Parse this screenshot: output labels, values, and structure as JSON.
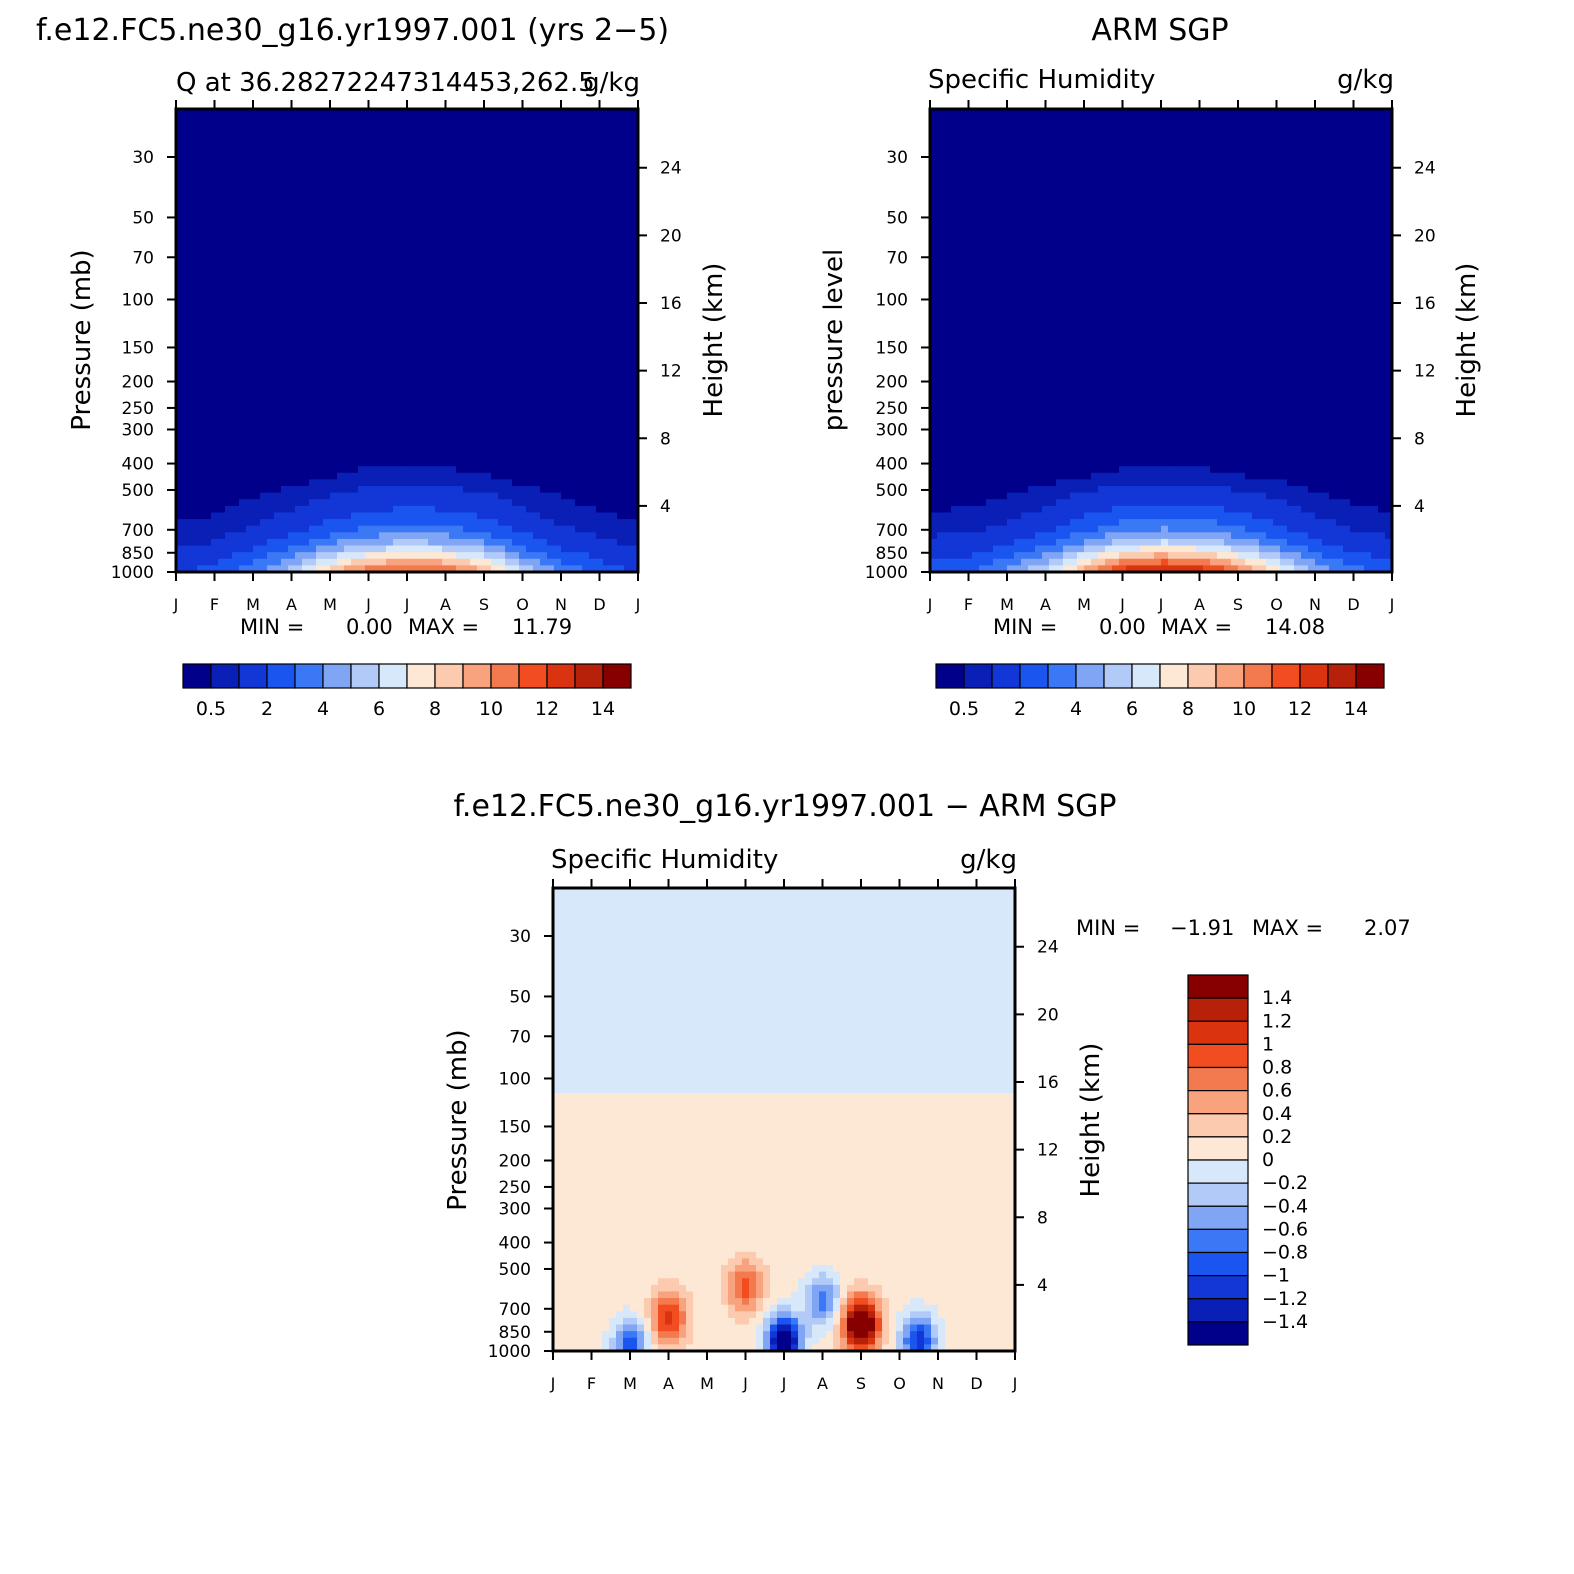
{
  "chart_data": [
    {
      "type": "heatmap",
      "title": "f.e12.FC5.ne30_g16.yr1997.001 (yrs 2−5)",
      "subtitle_left": "Q at 36.28272247314453,262.5",
      "subtitle_right": "g/kg",
      "ylabel": "Pressure (mb)",
      "ylabel_right": "Height (km)",
      "min_label": "MIN =",
      "min_value": "0.00",
      "max_label": "MAX =",
      "max_value": "11.79",
      "x": [
        "J",
        "F",
        "M",
        "A",
        "M",
        "J",
        "J",
        "A",
        "S",
        "O",
        "N",
        "D",
        "J"
      ],
      "y_ticks": [
        "30",
        "50",
        "70",
        "100",
        "150",
        "200",
        "250",
        "300",
        "400",
        "500",
        "700",
        "850",
        "1000"
      ],
      "y_right_ticks": [
        "24",
        "20",
        "16",
        "12",
        "8",
        "4"
      ],
      "ylim": [
        1000,
        20
      ],
      "log_scale_y": true,
      "levels": [
        0.5,
        1,
        2,
        3,
        4,
        5,
        6,
        7,
        8,
        9,
        10,
        11,
        12,
        13,
        14
      ],
      "colorbar_labels": [
        "0.5",
        "2",
        "4",
        "6",
        "8",
        "10",
        "12",
        "14"
      ],
      "colors": [
        "#00008b",
        "#0a1fb6",
        "#1237d6",
        "#1b55f0",
        "#3a78f5",
        "#7fa5f4",
        "#b2caf8",
        "#d8e8fb",
        "#fde8d6",
        "#fccaae",
        "#f8a27e",
        "#f3794e",
        "#f24d20",
        "#da330f",
        "#b82109",
        "#870000"
      ],
      "profile_pressure": [
        1000,
        950,
        900,
        850,
        800,
        700,
        600,
        500,
        450,
        400,
        350,
        300
      ],
      "values_monthly_profiles": [
        [
          2.0,
          1.7,
          1.4,
          1.2,
          0.9,
          0.6,
          0.4,
          0.2,
          0.1,
          0.06,
          0.03,
          0.01
        ],
        [
          2.3,
          2.0,
          1.7,
          1.4,
          1.1,
          0.7,
          0.45,
          0.25,
          0.12,
          0.07,
          0.03,
          0.01
        ],
        [
          3.8,
          3.3,
          2.8,
          2.3,
          1.8,
          1.1,
          0.7,
          0.4,
          0.2,
          0.1,
          0.05,
          0.02
        ],
        [
          5.6,
          4.9,
          4.1,
          3.4,
          2.7,
          1.7,
          1.0,
          0.55,
          0.3,
          0.15,
          0.07,
          0.03
        ],
        [
          8.5,
          7.5,
          6.3,
          5.2,
          4.1,
          2.5,
          1.5,
          0.8,
          0.5,
          0.25,
          0.1,
          0.04
        ],
        [
          11.0,
          9.7,
          8.1,
          6.6,
          5.2,
          3.2,
          2.0,
          1.1,
          0.7,
          0.45,
          0.2,
          0.07
        ],
        [
          11.8,
          10.4,
          8.7,
          7.1,
          5.6,
          3.5,
          2.2,
          1.2,
          0.75,
          0.45,
          0.2,
          0.07
        ],
        [
          11.2,
          9.9,
          8.3,
          6.8,
          5.3,
          3.3,
          2.1,
          1.1,
          0.7,
          0.4,
          0.18,
          0.06
        ],
        [
          9.2,
          8.1,
          6.8,
          5.6,
          4.4,
          2.7,
          1.7,
          0.9,
          0.55,
          0.3,
          0.13,
          0.05
        ],
        [
          6.0,
          5.3,
          4.4,
          3.6,
          2.8,
          1.8,
          1.1,
          0.6,
          0.35,
          0.18,
          0.08,
          0.03
        ],
        [
          3.8,
          3.3,
          2.8,
          2.3,
          1.8,
          1.1,
          0.7,
          0.4,
          0.2,
          0.1,
          0.05,
          0.02
        ],
        [
          2.6,
          2.3,
          1.9,
          1.6,
          1.2,
          0.8,
          0.5,
          0.28,
          0.14,
          0.08,
          0.04,
          0.01
        ],
        [
          2.0,
          1.7,
          1.4,
          1.2,
          0.9,
          0.6,
          0.4,
          0.2,
          0.1,
          0.06,
          0.03,
          0.01
        ]
      ]
    },
    {
      "type": "heatmap",
      "title": "ARM SGP",
      "subtitle_left": "Specific Humidity",
      "subtitle_right": "g/kg",
      "ylabel": "pressure level",
      "ylabel_right": "Height (km)",
      "min_label": "MIN =",
      "min_value": "0.00",
      "max_label": "MAX =",
      "max_value": "14.08",
      "x": [
        "J",
        "F",
        "M",
        "A",
        "M",
        "J",
        "J",
        "A",
        "S",
        "O",
        "N",
        "D",
        "J"
      ],
      "y_ticks": [
        "30",
        "50",
        "70",
        "100",
        "150",
        "200",
        "250",
        "300",
        "400",
        "500",
        "700",
        "850",
        "1000"
      ],
      "y_right_ticks": [
        "24",
        "20",
        "16",
        "12",
        "8",
        "4"
      ],
      "ylim": [
        1000,
        20
      ],
      "log_scale_y": true,
      "levels": [
        0.5,
        1,
        2,
        3,
        4,
        5,
        6,
        7,
        8,
        9,
        10,
        11,
        12,
        13,
        14
      ],
      "colorbar_labels": [
        "0.5",
        "2",
        "4",
        "6",
        "8",
        "10",
        "12",
        "14"
      ],
      "colors": [
        "#00008b",
        "#0a1fb6",
        "#1237d6",
        "#1b55f0",
        "#3a78f5",
        "#7fa5f4",
        "#b2caf8",
        "#d8e8fb",
        "#fde8d6",
        "#fccaae",
        "#f8a27e",
        "#f3794e",
        "#f24d20",
        "#da330f",
        "#b82109",
        "#870000"
      ],
      "profile_pressure": [
        1000,
        950,
        900,
        850,
        800,
        700,
        600,
        500,
        450,
        400,
        350,
        300
      ],
      "values_monthly_profiles": [
        [
          2.6,
          2.3,
          1.9,
          1.6,
          1.3,
          0.8,
          0.5,
          0.25,
          0.12,
          0.06,
          0.03,
          0.01
        ],
        [
          3.0,
          2.6,
          2.2,
          1.8,
          1.4,
          0.9,
          0.55,
          0.28,
          0.14,
          0.07,
          0.03,
          0.01
        ],
        [
          4.2,
          3.7,
          3.1,
          2.5,
          2.0,
          1.2,
          0.75,
          0.4,
          0.2,
          0.1,
          0.05,
          0.02
        ],
        [
          6.2,
          5.4,
          4.5,
          3.7,
          2.9,
          1.8,
          1.1,
          0.6,
          0.3,
          0.15,
          0.07,
          0.03
        ],
        [
          9.5,
          8.3,
          7.0,
          5.7,
          4.5,
          2.8,
          1.7,
          0.9,
          0.5,
          0.25,
          0.1,
          0.04
        ],
        [
          12.6,
          11.1,
          9.3,
          7.6,
          6.0,
          3.7,
          2.3,
          1.2,
          0.7,
          0.4,
          0.18,
          0.06
        ],
        [
          14.0,
          12.3,
          10.3,
          8.4,
          6.6,
          4.1,
          2.5,
          1.3,
          0.75,
          0.45,
          0.2,
          0.07
        ],
        [
          13.2,
          11.6,
          9.7,
          7.9,
          6.2,
          3.9,
          2.4,
          1.25,
          0.72,
          0.42,
          0.19,
          0.06
        ],
        [
          10.8,
          9.5,
          7.9,
          6.5,
          5.1,
          3.2,
          1.9,
          1.0,
          0.55,
          0.3,
          0.13,
          0.05
        ],
        [
          7.8,
          6.8,
          5.7,
          4.7,
          3.7,
          2.3,
          1.4,
          0.75,
          0.45,
          0.25,
          0.1,
          0.04
        ],
        [
          5.0,
          4.4,
          3.7,
          3.0,
          2.4,
          1.5,
          0.9,
          0.45,
          0.22,
          0.11,
          0.05,
          0.02
        ],
        [
          3.4,
          3.0,
          2.5,
          2.0,
          1.6,
          1.0,
          0.6,
          0.3,
          0.15,
          0.08,
          0.04,
          0.01
        ],
        [
          2.6,
          2.3,
          1.9,
          1.6,
          1.3,
          0.8,
          0.5,
          0.25,
          0.12,
          0.06,
          0.03,
          0.01
        ]
      ]
    },
    {
      "type": "heatmap",
      "title": "f.e12.FC5.ne30_g16.yr1997.001 − ARM SGP",
      "subtitle_left": "Specific Humidity",
      "subtitle_right": "g/kg",
      "ylabel": "Pressure (mb)",
      "ylabel_right": "Height (km)",
      "min_label": "MIN =",
      "min_value": "−1.91",
      "max_label": "MAX =",
      "max_value": "2.07",
      "x": [
        "J",
        "F",
        "M",
        "A",
        "M",
        "J",
        "J",
        "A",
        "S",
        "O",
        "N",
        "D",
        "J"
      ],
      "y_ticks": [
        "30",
        "50",
        "70",
        "100",
        "150",
        "200",
        "250",
        "300",
        "400",
        "500",
        "700",
        "850",
        "1000"
      ],
      "y_right_ticks": [
        "24",
        "20",
        "16",
        "12",
        "8",
        "4"
      ],
      "ylim": [
        1000,
        20
      ],
      "log_scale_y": true,
      "levels": [
        -1.4,
        -1.2,
        -1,
        -0.8,
        -0.6,
        -0.4,
        -0.2,
        0,
        0.2,
        0.4,
        0.6,
        0.8,
        1,
        1.2,
        1.4
      ],
      "colorbar_labels": [
        "1.4",
        "1.2",
        "1",
        "0.8",
        "0.6",
        "0.4",
        "0.2",
        "0",
        "−0.2",
        "−0.4",
        "−0.6",
        "−0.8",
        "−1",
        "−1.2",
        "−1.4"
      ],
      "colors": [
        "#00008b",
        "#0a1fb6",
        "#1237d6",
        "#1b55f0",
        "#3a78f5",
        "#7fa5f4",
        "#b2caf8",
        "#d8e8fb",
        "#fde8d6",
        "#fccaae",
        "#f8a27e",
        "#f3794e",
        "#f24d20",
        "#da330f",
        "#b82109",
        "#870000"
      ],
      "background_value": 0.1,
      "upper_region_value": -0.1,
      "features": [
        {
          "label": "positive maximum near A, 750 mb",
          "month": 3.0,
          "pressure": 760,
          "amplitude": 1.0
        },
        {
          "label": "positive maximum near J, 580 mb",
          "month": 5.0,
          "pressure": 580,
          "amplitude": 0.8
        },
        {
          "label": "negative minimum near A, 650 mb",
          "month": 7.0,
          "pressure": 650,
          "amplitude": -0.8
        },
        {
          "label": "positive maximum near S, 800 mb",
          "month": 8.0,
          "pressure": 800,
          "amplitude": 2.0
        },
        {
          "label": "near-surface negative band J–A",
          "month": 6.0,
          "pressure": 930,
          "amplitude": -1.9
        },
        {
          "label": "near-surface negative near M",
          "month": 2.0,
          "pressure": 960,
          "amplitude": -1.0
        },
        {
          "label": "near-surface negative O–D",
          "month": 9.5,
          "pressure": 920,
          "amplitude": -1.2
        }
      ]
    }
  ]
}
